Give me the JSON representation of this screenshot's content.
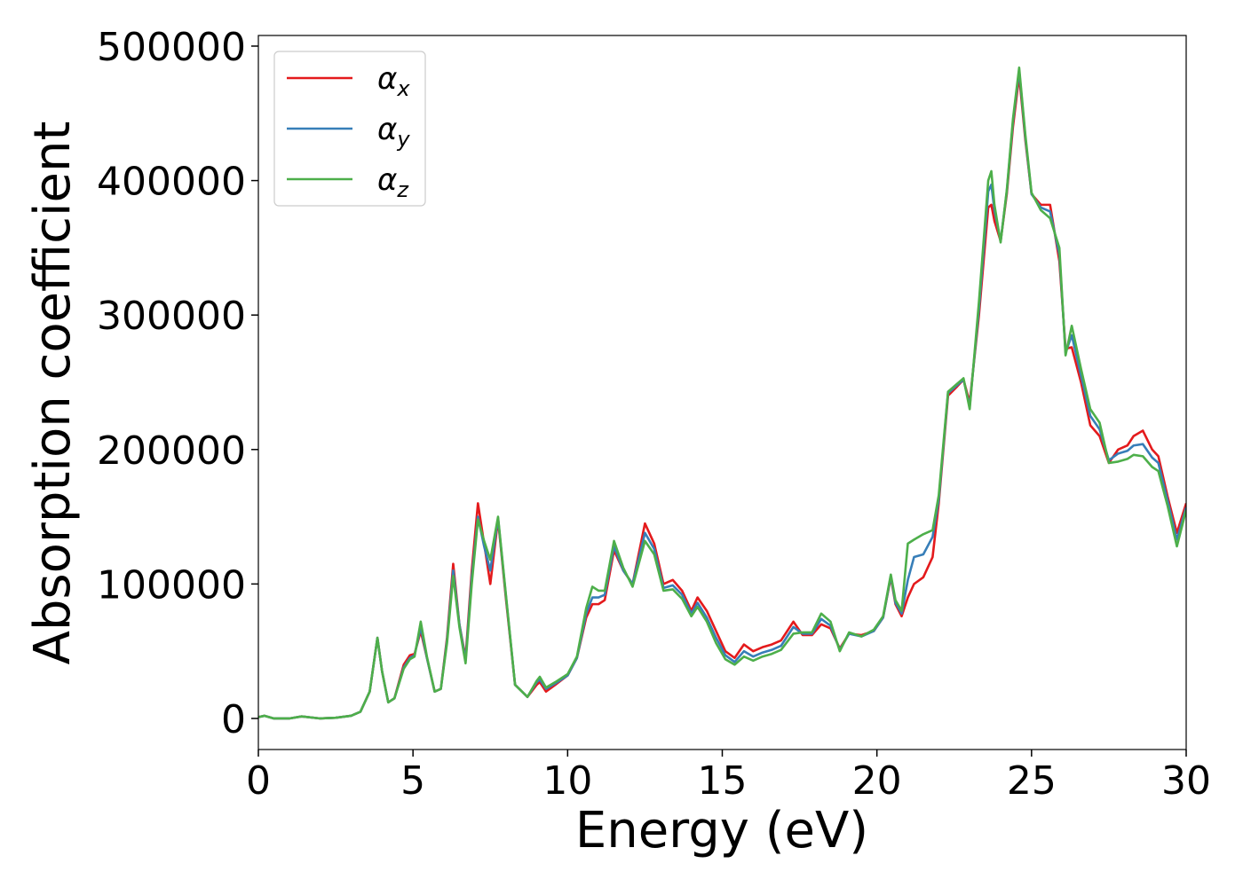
{
  "chart_data": {
    "type": "line",
    "xlabel": "Energy (eV)",
    "ylabel": "Absorption coefficient",
    "xlim": [
      0,
      30
    ],
    "ylim": [
      -23100,
      507900
    ],
    "xticks": [
      0,
      5,
      10,
      15,
      20,
      25,
      30
    ],
    "yticks": [
      0,
      100000,
      200000,
      300000,
      400000,
      500000
    ],
    "grid": false,
    "legend": "upper left",
    "x": [
      0,
      0.2,
      0.5,
      1,
      1.4,
      2,
      2.5,
      3,
      3.3,
      3.6,
      3.85,
      4.0,
      4.2,
      4.4,
      4.7,
      4.9,
      5.05,
      5.25,
      5.45,
      5.7,
      5.9,
      6.1,
      6.3,
      6.5,
      6.7,
      6.9,
      7.1,
      7.3,
      7.5,
      7.75,
      8.0,
      8.3,
      8.7,
      9.0,
      9.1,
      9.3,
      9.6,
      10.0,
      10.3,
      10.6,
      10.8,
      11.0,
      11.2,
      11.5,
      11.8,
      12.1,
      12.5,
      12.8,
      13.1,
      13.4,
      13.7,
      14.0,
      14.2,
      14.5,
      14.8,
      15.1,
      15.4,
      15.7,
      16.0,
      16.3,
      16.6,
      16.9,
      17.3,
      17.6,
      17.9,
      18.2,
      18.5,
      18.8,
      19.1,
      19.5,
      19.9,
      20.2,
      20.45,
      20.6,
      20.8,
      21.0,
      21.2,
      21.5,
      21.8,
      22.0,
      22.3,
      22.6,
      22.8,
      23.0,
      23.3,
      23.6,
      23.7,
      23.8,
      24.0,
      24.2,
      24.4,
      24.6,
      24.8,
      25.0,
      25.3,
      25.6,
      25.9,
      26.1,
      26.3,
      26.6,
      26.9,
      27.2,
      27.5,
      27.8,
      28.1,
      28.3,
      28.6,
      28.9,
      29.1,
      29.4,
      29.7,
      30.0
    ],
    "series": [
      {
        "name": "αx",
        "color": "#e41a1c",
        "values": [
          1000,
          2000,
          0,
          0,
          1500,
          0,
          500,
          2000,
          5000,
          20000,
          60000,
          35000,
          12000,
          15000,
          40000,
          47000,
          48000,
          65000,
          45000,
          20000,
          22000,
          60000,
          115000,
          70000,
          45000,
          110000,
          160000,
          130000,
          100000,
          148000,
          90000,
          25000,
          16000,
          25000,
          27000,
          20000,
          25000,
          32000,
          45000,
          75000,
          85000,
          85000,
          88000,
          125000,
          110000,
          100000,
          145000,
          130000,
          100000,
          103000,
          95000,
          80000,
          90000,
          80000,
          65000,
          50000,
          45000,
          55000,
          50000,
          53000,
          55000,
          58000,
          72000,
          62000,
          62000,
          70000,
          67000,
          52000,
          63000,
          62000,
          65000,
          75000,
          105000,
          85000,
          76000,
          90000,
          100000,
          105000,
          120000,
          160000,
          240000,
          247000,
          252000,
          235000,
          300000,
          380000,
          382000,
          370000,
          355000,
          390000,
          440000,
          478000,
          430000,
          390000,
          382000,
          382000,
          340000,
          275000,
          276000,
          250000,
          218000,
          210000,
          190000,
          200000,
          203000,
          210000,
          214000,
          200000,
          195000,
          165000,
          138000,
          160000
        ]
      },
      {
        "name": "αy",
        "color": "#377eb8",
        "values": [
          1000,
          2000,
          0,
          0,
          1500,
          0,
          500,
          2000,
          5000,
          20000,
          60000,
          35000,
          12000,
          15000,
          38000,
          45000,
          47000,
          68000,
          45000,
          20000,
          22000,
          58000,
          110000,
          70000,
          43000,
          105000,
          150000,
          128000,
          110000,
          149000,
          92000,
          25000,
          16000,
          27000,
          29000,
          22000,
          26000,
          32000,
          45000,
          78000,
          90000,
          90000,
          92000,
          128000,
          110000,
          100000,
          138000,
          126000,
          97000,
          99000,
          92000,
          78000,
          86000,
          75000,
          60000,
          47000,
          42000,
          50000,
          46000,
          49000,
          51000,
          54000,
          68000,
          63000,
          63000,
          74000,
          69000,
          51000,
          63000,
          61000,
          65000,
          75000,
          106000,
          86000,
          78000,
          103000,
          120000,
          122000,
          135000,
          163000,
          242000,
          248000,
          252000,
          232000,
          305000,
          392000,
          397000,
          378000,
          355000,
          392000,
          444000,
          482000,
          432000,
          390000,
          380000,
          377000,
          345000,
          272000,
          285000,
          255000,
          225000,
          215000,
          192000,
          197000,
          199000,
          203000,
          204000,
          194000,
          190000,
          162000,
          133000,
          157000
        ]
      },
      {
        "name": "αz",
        "color": "#4daf4a",
        "values": [
          1000,
          2000,
          0,
          0,
          1500,
          0,
          500,
          2000,
          5000,
          20000,
          60000,
          35000,
          12000,
          15000,
          37000,
          44000,
          46000,
          72000,
          46000,
          20000,
          22000,
          56000,
          106000,
          68000,
          41000,
          100000,
          148000,
          132000,
          118000,
          150000,
          93000,
          25000,
          16000,
          28000,
          31000,
          23000,
          27000,
          33000,
          46000,
          82000,
          98000,
          95000,
          95000,
          132000,
          112000,
          98000,
          132000,
          122000,
          95000,
          96000,
          89000,
          76000,
          83000,
          72000,
          56000,
          44000,
          40000,
          46000,
          43000,
          46000,
          48000,
          51000,
          63000,
          64000,
          64000,
          78000,
          72000,
          50000,
          64000,
          61000,
          66000,
          76000,
          107000,
          88000,
          80000,
          130000,
          133000,
          137000,
          140000,
          166000,
          243000,
          249000,
          253000,
          230000,
          310000,
          400000,
          407000,
          382000,
          354000,
          393000,
          446000,
          484000,
          434000,
          391000,
          378000,
          372000,
          350000,
          270000,
          292000,
          260000,
          230000,
          220000,
          190000,
          191000,
          193000,
          196000,
          195000,
          187000,
          184000,
          158000,
          128000,
          155000
        ]
      }
    ]
  }
}
